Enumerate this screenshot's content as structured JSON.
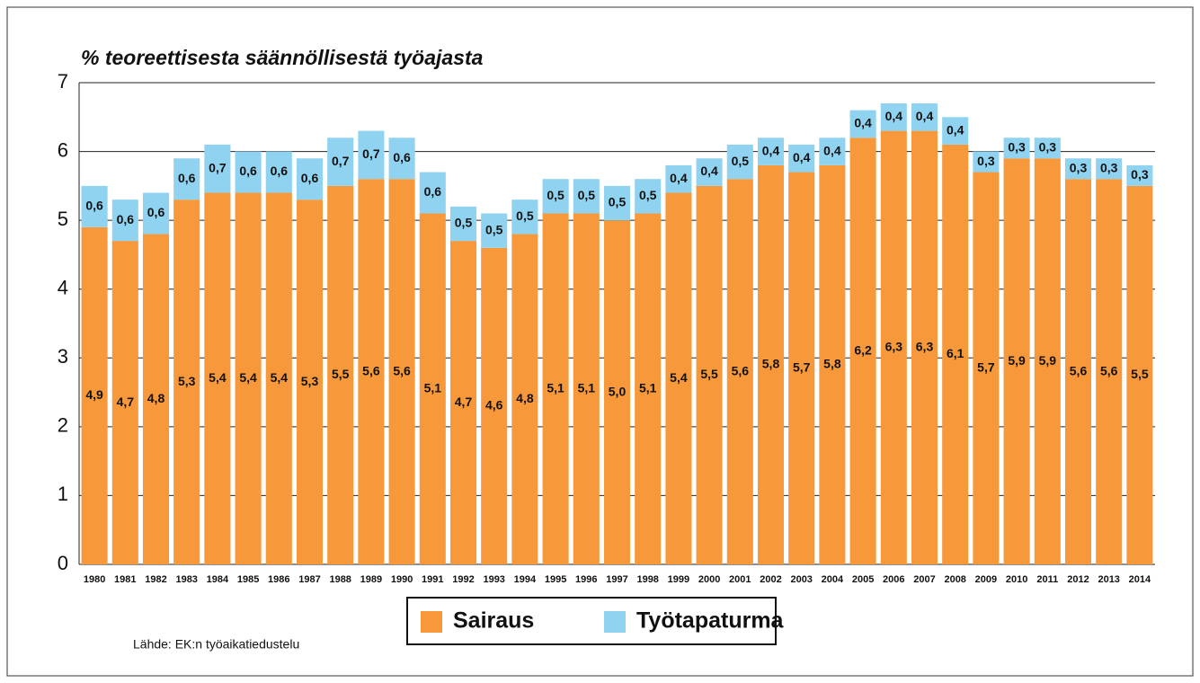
{
  "chart_data": {
    "type": "stacked_bar",
    "title": "% teoreettisesta säännöllisestä työajasta",
    "source": "Lähde: EK:n työaikatiedustelu",
    "categories": [
      "1980",
      "1981",
      "1982",
      "1983",
      "1984",
      "1985",
      "1986",
      "1987",
      "1988",
      "1989",
      "1990",
      "1991",
      "1992",
      "1993",
      "1994",
      "1995",
      "1996",
      "1997",
      "1998",
      "1999",
      "2000",
      "2001",
      "2002",
      "2003",
      "2004",
      "2005",
      "2006",
      "2007",
      "2008",
      "2009",
      "2010",
      "2011",
      "2012",
      "2013",
      "2014"
    ],
    "series": [
      {
        "name": "Sairaus",
        "color": "#f7993a",
        "values": [
          4.9,
          4.7,
          4.8,
          5.3,
          5.4,
          5.4,
          5.4,
          5.3,
          5.5,
          5.6,
          5.6,
          5.1,
          4.7,
          4.6,
          4.8,
          5.1,
          5.1,
          5.0,
          5.1,
          5.4,
          5.5,
          5.6,
          5.8,
          5.7,
          5.8,
          6.2,
          6.3,
          6.3,
          6.1,
          5.7,
          5.9,
          5.9,
          5.6,
          5.6,
          5.5
        ],
        "value_labels": [
          "4,9",
          "4,7",
          "4,8",
          "5,3",
          "5,4",
          "5,4",
          "5,4",
          "5,3",
          "5,5",
          "5,6",
          "5,6",
          "5,1",
          "4,7",
          "4,6",
          "4,8",
          "5,1",
          "5,1",
          "5,0",
          "5,1",
          "5,4",
          "5,5",
          "5,6",
          "5,8",
          "5,7",
          "5,8",
          "6,2",
          "6,3",
          "6,3",
          "6,1",
          "5,7",
          "5,9",
          "5,9",
          "5,6",
          "5,6",
          "5,5"
        ]
      },
      {
        "name": "Työtapaturma",
        "color": "#8fd3f0",
        "values": [
          0.6,
          0.6,
          0.6,
          0.6,
          0.7,
          0.6,
          0.6,
          0.6,
          0.7,
          0.7,
          0.6,
          0.6,
          0.5,
          0.5,
          0.5,
          0.5,
          0.5,
          0.5,
          0.5,
          0.4,
          0.4,
          0.5,
          0.4,
          0.4,
          0.4,
          0.4,
          0.4,
          0.4,
          0.4,
          0.3,
          0.3,
          0.3,
          0.3,
          0.3,
          0.3
        ],
        "value_labels": [
          "0,6",
          "0,6",
          "0,6",
          "0,6",
          "0,7",
          "0,6",
          "0,6",
          "0,6",
          "0,7",
          "0,7",
          "0,6",
          "0,6",
          "0,5",
          "0,5",
          "0,5",
          "0,5",
          "0,5",
          "0,5",
          "0,5",
          "0,4",
          "0,4",
          "0,5",
          "0,4",
          "0,4",
          "0,4",
          "0,4",
          "0,4",
          "0,4",
          "0,4",
          "0,3",
          "0,3",
          "0,3",
          "0,3",
          "0,3",
          "0,3"
        ]
      }
    ],
    "ylim": [
      0,
      7
    ],
    "yticks": [
      0,
      1,
      2,
      3,
      4,
      5,
      6,
      7
    ],
    "grid": true
  }
}
